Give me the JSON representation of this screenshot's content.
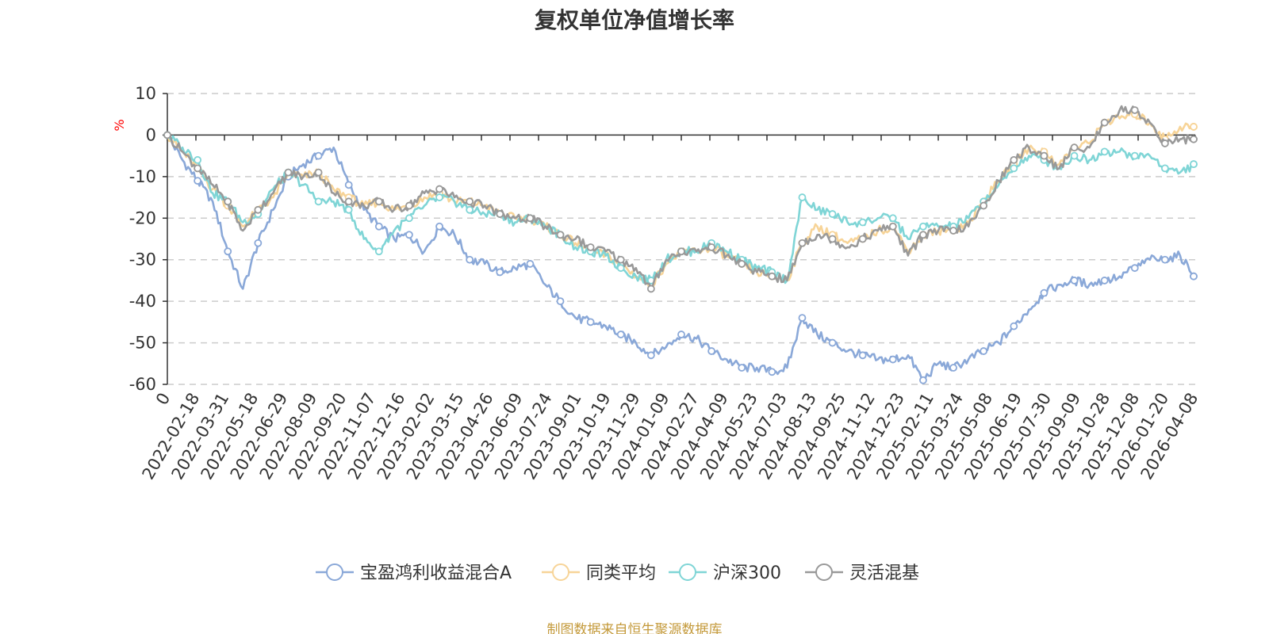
{
  "chart_data": {
    "type": "line",
    "title": "复权单位净值增长率",
    "ylabel": "%",
    "ylim": [
      -60,
      10
    ],
    "yticks": [
      10,
      0,
      -10,
      -20,
      -30,
      -40,
      -50,
      -60
    ],
    "x_tick_labels": [
      "0",
      "2022-02-18",
      "2022-03-31",
      "2022-05-18",
      "2022-06-29",
      "2022-08-09",
      "2022-09-20",
      "2022-11-07",
      "2022-12-16",
      "2023-02-02",
      "2023-03-15",
      "2023-04-26",
      "2023-06-09",
      "2023-07-24",
      "2023-09-01",
      "2023-10-19",
      "2023-11-29",
      "2024-01-09",
      "2024-02-27",
      "2024-04-09",
      "2024-05-23",
      "2024-07-03",
      "2024-08-13",
      "2024-09-25",
      "2024-11-12",
      "2024-12-23",
      "2025-02-11",
      "2025-03-24",
      "2025-05-08",
      "2025-06-19",
      "2025-07-30",
      "2025-09-09",
      "2025-10-28",
      "2025-12-08",
      "2026-01-20",
      "2026-04-08"
    ],
    "grid": true,
    "legend_position": "bottom",
    "series": [
      {
        "name": "宝盈鸿利收益混合A",
        "color": "#8aa8d8",
        "values": [
          0,
          -6,
          -11,
          -16,
          -28,
          -37,
          -26,
          -18,
          -10,
          -7,
          -5,
          -3,
          -12,
          -18,
          -22,
          -25,
          -24,
          -28,
          -22,
          -24,
          -30,
          -31,
          -33,
          -32,
          -31,
          -36,
          -40,
          -44,
          -45,
          -46,
          -48,
          -50,
          -53,
          -51,
          -48,
          -49,
          -52,
          -54,
          -56,
          -56,
          -57,
          -56,
          -44,
          -48,
          -50,
          -52,
          -53,
          -54,
          -54,
          -53,
          -59,
          -55,
          -56,
          -54,
          -52,
          -50,
          -46,
          -42,
          -38,
          -36,
          -35,
          -36,
          -35,
          -34,
          -32,
          -30,
          -30,
          -29,
          -34
        ]
      },
      {
        "name": "同类平均",
        "color": "#f7d498",
        "values": [
          0,
          -4,
          -8,
          -13,
          -17,
          -22,
          -18,
          -15,
          -9,
          -10,
          -9,
          -13,
          -15,
          -17,
          -16,
          -18,
          -17,
          -15,
          -14,
          -16,
          -16,
          -17,
          -19,
          -20,
          -20,
          -22,
          -24,
          -26,
          -28,
          -29,
          -31,
          -34,
          -36,
          -31,
          -28,
          -28,
          -27,
          -29,
          -31,
          -33,
          -34,
          -35,
          -26,
          -22,
          -24,
          -26,
          -25,
          -23,
          -22,
          -28,
          -24,
          -23,
          -23,
          -21,
          -16,
          -11,
          -7,
          -3,
          -4,
          -7,
          -3,
          -2,
          3,
          4,
          5,
          3,
          -1,
          2,
          2
        ]
      },
      {
        "name": "沪深300",
        "color": "#7fd5d6",
        "values": [
          0,
          -3,
          -6,
          -14,
          -16,
          -21,
          -19,
          -13,
          -9,
          -12,
          -16,
          -16,
          -18,
          -25,
          -28,
          -23,
          -20,
          -17,
          -15,
          -16,
          -18,
          -19,
          -19,
          -21,
          -20,
          -22,
          -24,
          -27,
          -28,
          -29,
          -32,
          -34,
          -35,
          -30,
          -28,
          -28,
          -26,
          -28,
          -30,
          -32,
          -33,
          -35,
          -15,
          -18,
          -19,
          -21,
          -21,
          -20,
          -20,
          -25,
          -22,
          -22,
          -22,
          -20,
          -16,
          -12,
          -8,
          -5,
          -6,
          -8,
          -5,
          -6,
          -4,
          -4,
          -5,
          -5,
          -8,
          -9,
          -7
        ]
      },
      {
        "name": "灵活混基",
        "color": "#999999",
        "values": [
          0,
          -4,
          -8,
          -12,
          -16,
          -23,
          -18,
          -14,
          -9,
          -10,
          -9,
          -14,
          -16,
          -17,
          -16,
          -18,
          -17,
          -14,
          -13,
          -15,
          -16,
          -17,
          -19,
          -20,
          -20,
          -22,
          -24,
          -25,
          -27,
          -28,
          -30,
          -32,
          -37,
          -30,
          -28,
          -28,
          -27,
          -29,
          -31,
          -33,
          -34,
          -35,
          -26,
          -24,
          -25,
          -27,
          -25,
          -23,
          -22,
          -29,
          -24,
          -23,
          -23,
          -22,
          -17,
          -11,
          -6,
          -3,
          -5,
          -8,
          -3,
          -3,
          3,
          6,
          6,
          3,
          -2,
          -1,
          -1
        ]
      }
    ],
    "source_note": "制图数据来自恒生聚源数据库"
  }
}
